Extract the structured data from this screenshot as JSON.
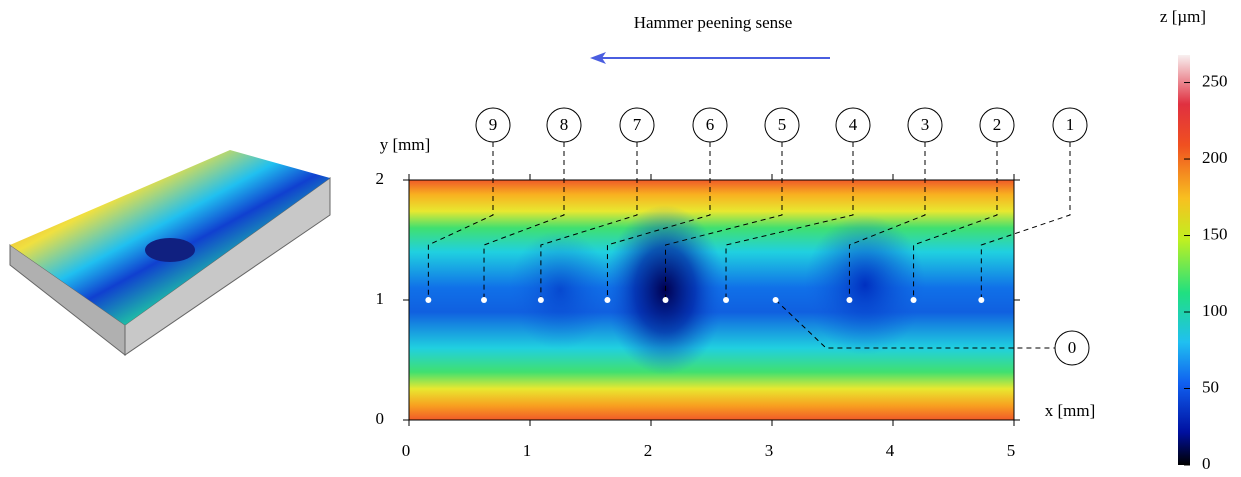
{
  "chart_data": {
    "type": "scatter",
    "title": "Hammer peening sense",
    "xlabel": "x [mm]",
    "ylabel": "y [mm]",
    "zlabel": "z [µm]",
    "x": [
      0.16,
      0.62,
      1.09,
      1.64,
      2.12,
      2.62,
      3.03,
      3.64,
      4.17,
      4.73
    ],
    "values": [
      1,
      1,
      1,
      1,
      1,
      1,
      1,
      1,
      1,
      1
    ],
    "point_labels": [
      "9",
      "8",
      "7",
      "6",
      "5",
      "4",
      "0",
      "3",
      "2",
      "1"
    ],
    "color": "#ffffff",
    "xlim": [
      0,
      5
    ],
    "xticks": [
      0,
      1,
      2,
      3,
      4,
      5
    ],
    "ylim": [
      0,
      2
    ],
    "yticks": [
      0,
      1,
      2
    ],
    "zlim": [
      0,
      268
    ],
    "zticks": [
      0,
      50,
      100,
      150,
      200,
      250
    ]
  }
}
